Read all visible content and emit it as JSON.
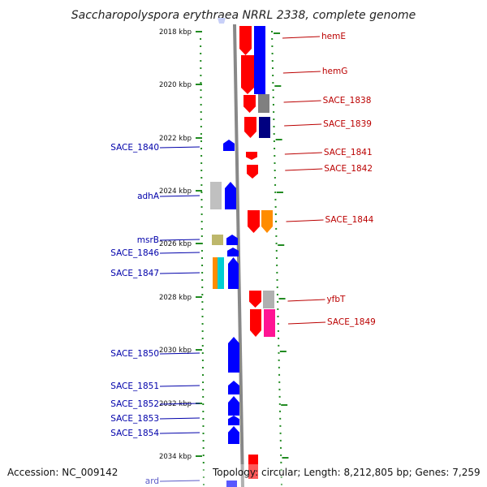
{
  "title": "Saccharopolyspora erythraea NRRL 2338, complete genome",
  "footer": {
    "accession": "Accession: NC_009142",
    "summary": "Topology: circular; Length: 8,212,805 bp; Genes: 7,259"
  },
  "ruler": [
    "2018 kbp",
    "2020 kbp",
    "2022 kbp",
    "2024 kbp",
    "2026 kbp",
    "2028 kbp",
    "2030 kbp",
    "2032 kbp",
    "2034 kbp"
  ],
  "left_genes": [
    "SACE_1840",
    "adhA",
    "msrB",
    "SACE_1846",
    "SACE_1847",
    "SACE_1850",
    "SACE_1851",
    "SACE_1852",
    "SACE_1853",
    "SACE_1854",
    "ard"
  ],
  "right_genes": [
    "hemE",
    "hemG",
    "SACE_1838",
    "SACE_1839",
    "SACE_1841",
    "SACE_1842",
    "SACE_1844",
    "yfbT",
    "SACE_1849"
  ],
  "colors": {
    "forward_strand": "#ff0000",
    "reverse_strand": "#0000ff",
    "backbone": "#888888",
    "ticks": "#228b22",
    "label_left": "#0000aa",
    "label_right": "#bb0000"
  }
}
